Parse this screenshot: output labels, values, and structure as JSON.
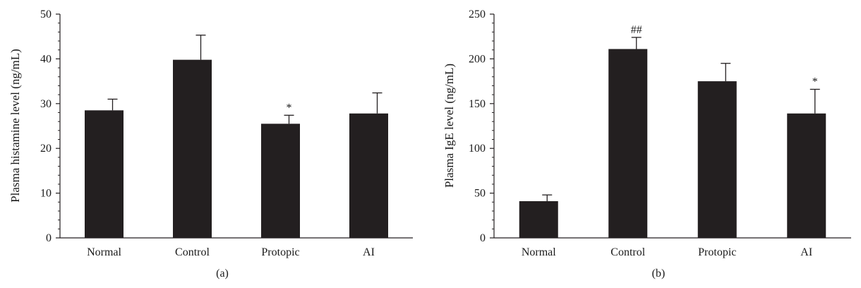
{
  "chart_data": [
    {
      "type": "bar",
      "panel_label": "(a)",
      "categories": [
        "Normal",
        "Control",
        "Protopic",
        "AI"
      ],
      "values": [
        28.5,
        39.8,
        25.5,
        27.8
      ],
      "errors": [
        2.5,
        5.5,
        1.9,
        4.6
      ],
      "annotations": [
        "",
        "",
        "*",
        ""
      ],
      "ylabel": "Plasma histamine level (ng/mL)",
      "xlabel": "",
      "ylim": [
        0,
        50
      ],
      "yticks": [
        0,
        10,
        20,
        30,
        40,
        50
      ],
      "bar_color": "#231f20",
      "grid": false
    },
    {
      "type": "bar",
      "panel_label": "(b)",
      "categories": [
        "Normal",
        "Control",
        "Protopic",
        "AI"
      ],
      "values": [
        41,
        211,
        175,
        139
      ],
      "errors": [
        7,
        13,
        20,
        27
      ],
      "annotations": [
        "",
        "##",
        "",
        "*"
      ],
      "ylabel": "Plasma IgE level (ng/mL)",
      "xlabel": "",
      "ylim": [
        0,
        250
      ],
      "yticks": [
        0,
        50,
        100,
        150,
        200,
        250
      ],
      "bar_color": "#231f20",
      "grid": false
    }
  ]
}
